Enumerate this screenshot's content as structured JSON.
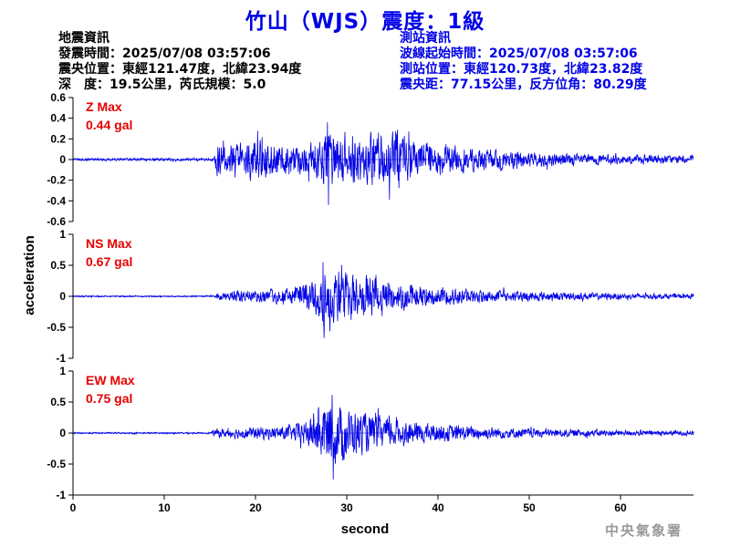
{
  "title": "竹山（WJS）震度：1級",
  "earthquake": {
    "heading": "地震資訊",
    "origin_time": "發震時間：2025/07/08 03:57:06",
    "epicenter": "震央位置：東經121.47度，北緯23.94度",
    "depth_magnitude": "深　度：19.5公里，芮氏規模：5.0"
  },
  "station": {
    "heading": "測站資訊",
    "record_start": "波線起始時間：2025/07/08 03:57:06",
    "location": "測站位置：東經120.73度，北緯23.82度",
    "distance_azimuth": "震央距：77.15公里，反方位角：80.29度"
  },
  "agency": "中央氣象署",
  "colors": {
    "trace": "#0000e6",
    "label": "#e60000",
    "axis": "#000000"
  },
  "chart_data": {
    "type": "line",
    "xlabel": "second",
    "ylabel": "acceleration",
    "xlim": [
      0,
      68
    ],
    "x_ticks": [
      0,
      10,
      20,
      30,
      40,
      50,
      60
    ],
    "onset_s": 15.5,
    "panels": [
      {
        "component": "Z",
        "label": "Z Max",
        "max_text": "0.44 gal",
        "max_value": 0.44,
        "ylim": [
          -0.6,
          0.6
        ],
        "y_ticks": [
          0.6,
          0.4,
          0.2,
          0,
          -0.2,
          -0.4,
          -0.6
        ],
        "y_tick_labels": [
          "0.6",
          "0.4",
          "0.2",
          "0",
          "-0.2",
          "-0.4",
          "-0.6"
        ],
        "envelope": [
          [
            0,
            0.015
          ],
          [
            15.4,
            0.015
          ],
          [
            15.8,
            0.2
          ],
          [
            16.5,
            0.17
          ],
          [
            18,
            0.18
          ],
          [
            20,
            0.24
          ],
          [
            22,
            0.2
          ],
          [
            24,
            0.18
          ],
          [
            26,
            0.19
          ],
          [
            28,
            0.32
          ],
          [
            30,
            0.3
          ],
          [
            32,
            0.28
          ],
          [
            34,
            0.32
          ],
          [
            36,
            0.26
          ],
          [
            38,
            0.22
          ],
          [
            40,
            0.18
          ],
          [
            44,
            0.13
          ],
          [
            48,
            0.1
          ],
          [
            52,
            0.08
          ],
          [
            56,
            0.06
          ],
          [
            60,
            0.055
          ],
          [
            64,
            0.05
          ],
          [
            68,
            0.04
          ]
        ]
      },
      {
        "component": "NS",
        "label": "NS Max",
        "max_text": "0.67 gal",
        "max_value": 0.67,
        "ylim": [
          -1,
          1
        ],
        "y_ticks": [
          1,
          0.5,
          0,
          -0.5,
          -1
        ],
        "y_tick_labels": [
          "1",
          "0.5",
          "0",
          "-0.5",
          "-1"
        ],
        "envelope": [
          [
            0,
            0.015
          ],
          [
            15.5,
            0.015
          ],
          [
            16,
            0.08
          ],
          [
            18,
            0.12
          ],
          [
            20,
            0.12
          ],
          [
            22,
            0.14
          ],
          [
            24,
            0.16
          ],
          [
            26,
            0.32
          ],
          [
            27.5,
            0.55
          ],
          [
            28.5,
            0.5
          ],
          [
            30,
            0.45
          ],
          [
            32,
            0.4
          ],
          [
            34,
            0.3
          ],
          [
            36,
            0.26
          ],
          [
            38,
            0.2
          ],
          [
            40,
            0.17
          ],
          [
            44,
            0.13
          ],
          [
            48,
            0.1
          ],
          [
            52,
            0.08
          ],
          [
            56,
            0.07
          ],
          [
            60,
            0.06
          ],
          [
            64,
            0.05
          ],
          [
            68,
            0.045
          ]
        ]
      },
      {
        "component": "EW",
        "label": "EW Max",
        "max_text": "0.75 gal",
        "max_value": 0.75,
        "ylim": [
          -1,
          1
        ],
        "y_ticks": [
          1,
          0.5,
          0,
          -0.5,
          -1
        ],
        "y_tick_labels": [
          "1",
          "0.5",
          "0",
          "-0.5",
          "-1"
        ],
        "envelope": [
          [
            0,
            0.015
          ],
          [
            15,
            0.015
          ],
          [
            15.8,
            0.08
          ],
          [
            18,
            0.1
          ],
          [
            20,
            0.12
          ],
          [
            22,
            0.12
          ],
          [
            24,
            0.14
          ],
          [
            26,
            0.3
          ],
          [
            27.5,
            0.55
          ],
          [
            28.5,
            0.6
          ],
          [
            29.5,
            0.52
          ],
          [
            31,
            0.42
          ],
          [
            33,
            0.33
          ],
          [
            35,
            0.27
          ],
          [
            37,
            0.22
          ],
          [
            40,
            0.17
          ],
          [
            44,
            0.13
          ],
          [
            48,
            0.1
          ],
          [
            52,
            0.08
          ],
          [
            56,
            0.07
          ],
          [
            60,
            0.06
          ],
          [
            64,
            0.05
          ],
          [
            68,
            0.045
          ]
        ]
      }
    ]
  }
}
